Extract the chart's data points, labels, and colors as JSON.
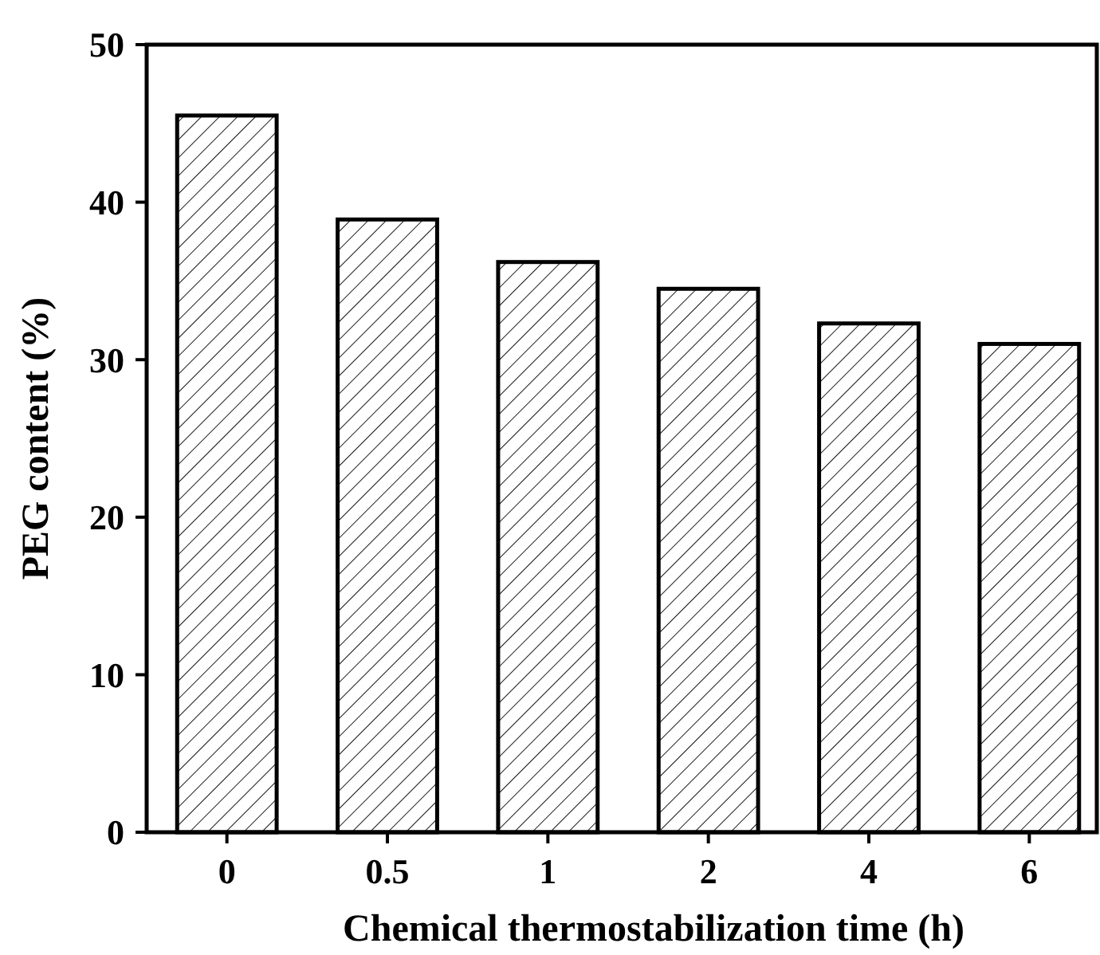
{
  "chart_data": {
    "type": "bar",
    "xlabel": "Chemical thermostabilization time (h)",
    "ylabel": "PEG content (%)",
    "categories": [
      "0",
      "0.5",
      "1",
      "2",
      "4",
      "6"
    ],
    "values": [
      45.5,
      38.9,
      36.2,
      34.5,
      32.3,
      31.0
    ],
    "color": "#000000",
    "ylim": [
      0,
      50
    ],
    "yticks": [
      0,
      10,
      20,
      30,
      40,
      50
    ],
    "grid": false
  }
}
